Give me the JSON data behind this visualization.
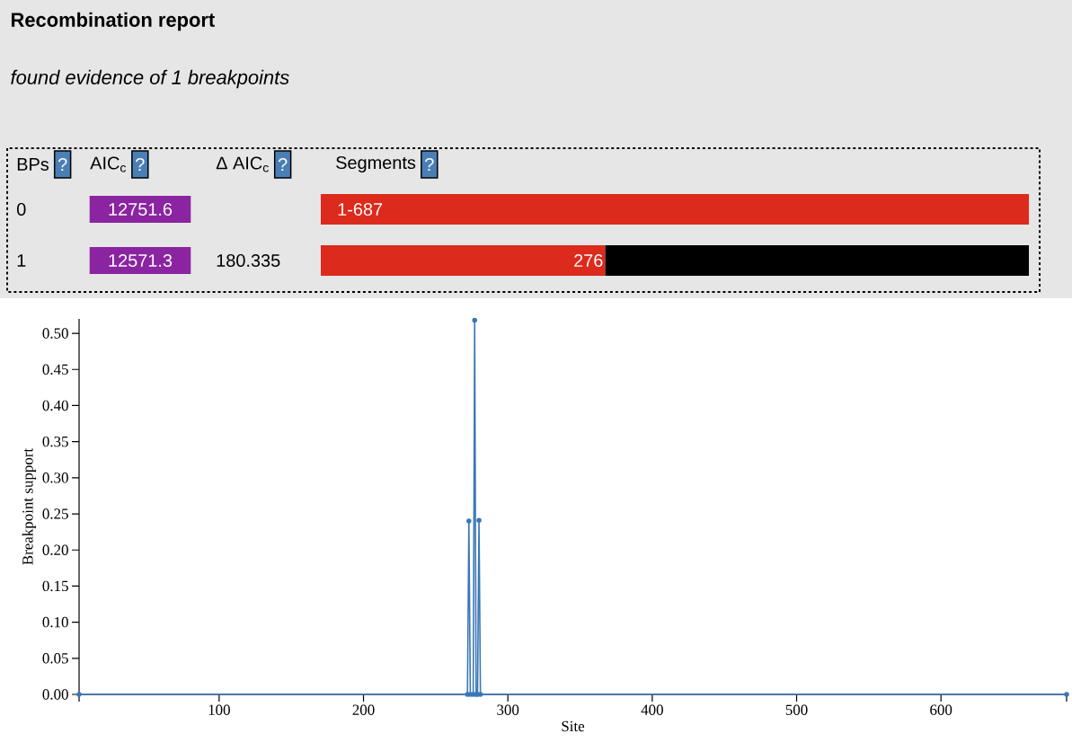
{
  "chart_data": [
    {
      "type": "bar",
      "orientation": "horizontal",
      "stacked": true,
      "title": "Recombination report",
      "subtitle": "*found evidence of 1 breakpoints*",
      "categories": [
        "0",
        "1"
      ],
      "xlim": [
        0,
        687
      ],
      "tick_labels": false,
      "series": [
        {
          "color": "#dc2a1c",
          "values": [
            687,
            276
          ],
          "value_labels": [
            "1-687",
            "276"
          ]
        },
        {
          "color": "#000000",
          "values": [
            null,
            411
          ],
          "value_labels": [
            null,
            null
          ]
        }
      ],
      "annotations": [
        "BPs",
        "AIC$_{c}$",
        "Δ AIC$_{c}$",
        "Segments",
        "?",
        "?",
        "?",
        "?",
        "12751.6",
        "12571.3",
        "180.335"
      ]
    },
    {
      "type": "line",
      "xlabel": "Site",
      "ylabel": "Breakpoint support",
      "marker": "circle",
      "xlim": [
        3,
        687
      ],
      "ylim": [
        0,
        0.52
      ],
      "xticks": [
        {
          "value": 3,
          "label": null
        },
        100,
        200,
        300,
        400,
        500,
        600,
        {
          "value": 687,
          "label": null
        }
      ],
      "yticks": [
        {
          "value": 0,
          "label": "0.00"
        },
        {
          "value": 0.05,
          "label": "0.05"
        },
        {
          "value": 0.1,
          "label": "0.10"
        },
        {
          "value": 0.15,
          "label": "0.15"
        },
        {
          "value": 0.2,
          "label": "0.20"
        },
        {
          "value": 0.25,
          "label": "0.25"
        },
        {
          "value": 0.3,
          "label": "0.30"
        },
        {
          "value": 0.35,
          "label": "0.35"
        },
        {
          "value": 0.4,
          "label": "0.40"
        },
        {
          "value": 0.45,
          "label": "0.45"
        },
        {
          "value": 0.5,
          "label": "0.50"
        }
      ],
      "series": [
        {
          "color": "#3a78b5",
          "x": [
            3,
            272,
            273,
            274,
            276,
            277,
            278,
            279,
            280,
            281,
            687
          ],
          "values": [
            0,
            0,
            0.24,
            0,
            0,
            0.518,
            0,
            0,
            0.241,
            0,
            0
          ]
        }
      ]
    }
  ]
}
